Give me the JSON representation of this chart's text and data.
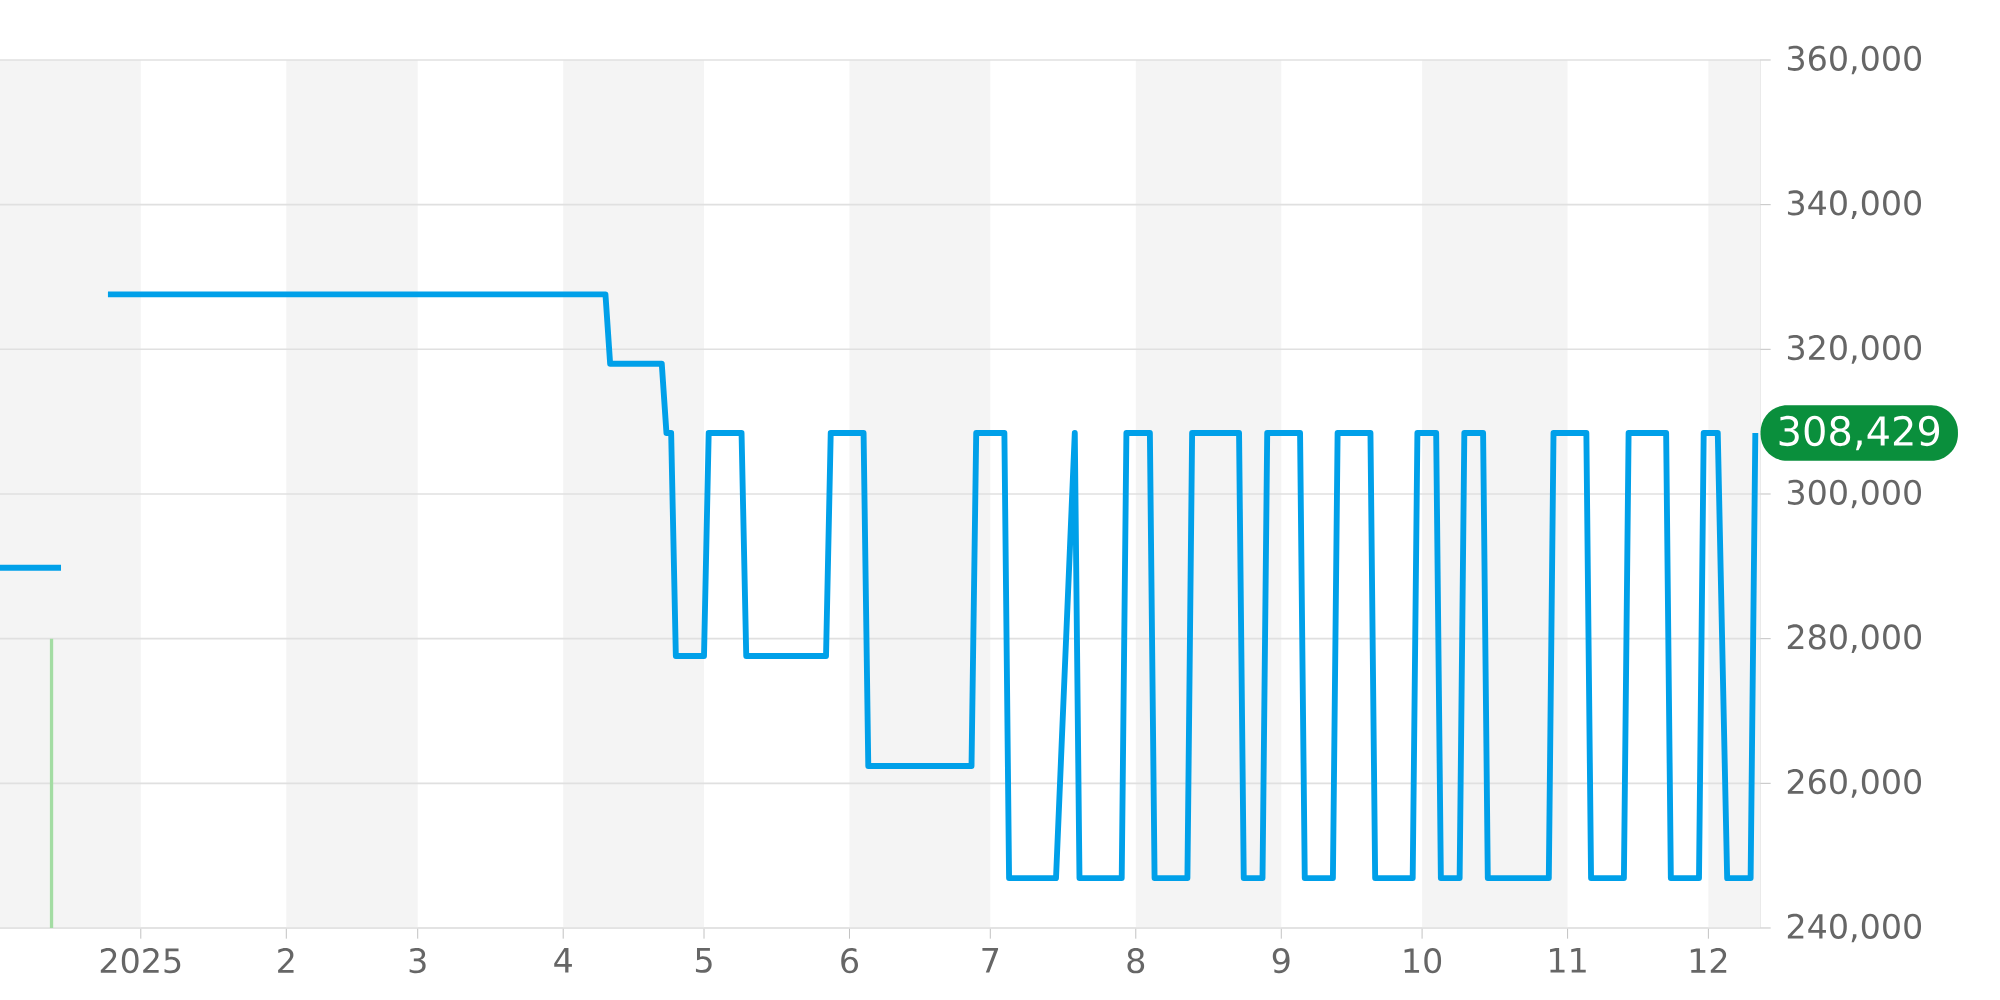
{
  "chart_data": {
    "type": "line",
    "xlim": [
      "2024-12-02",
      "2025-12-12"
    ],
    "ylim": [
      240000,
      360000
    ],
    "xticks": [
      {
        "value": "2025-01-01",
        "label": "2025"
      },
      {
        "value": "2025-02-01",
        "label": "2"
      },
      {
        "value": "2025-03-01",
        "label": "3"
      },
      {
        "value": "2025-04-01",
        "label": "4"
      },
      {
        "value": "2025-05-01",
        "label": "5"
      },
      {
        "value": "2025-06-01",
        "label": "6"
      },
      {
        "value": "2025-07-01",
        "label": "7"
      },
      {
        "value": "2025-08-01",
        "label": "8"
      },
      {
        "value": "2025-09-01",
        "label": "9"
      },
      {
        "value": "2025-10-01",
        "label": "10"
      },
      {
        "value": "2025-11-01",
        "label": "11"
      },
      {
        "value": "2025-12-01",
        "label": "12"
      }
    ],
    "yticks": [
      {
        "value": 240000,
        "label": "240,000"
      },
      {
        "value": 260000,
        "label": "260,000"
      },
      {
        "value": 280000,
        "label": "280,000"
      },
      {
        "value": 300000,
        "label": "300,000"
      },
      {
        "value": 320000,
        "label": "320,000"
      },
      {
        "value": 340000,
        "label": "340,000"
      },
      {
        "value": 360000,
        "label": "360,000"
      }
    ],
    "grid": "y",
    "bands": [
      {
        "axis": "x",
        "from": "2024-12-02",
        "to": "2025-01-01",
        "color": "#f4f4f4"
      },
      {
        "axis": "x",
        "from": "2025-02-01",
        "to": "2025-03-01",
        "color": "#f4f4f4"
      },
      {
        "axis": "x",
        "from": "2025-04-01",
        "to": "2025-05-01",
        "color": "#f4f4f4"
      },
      {
        "axis": "x",
        "from": "2025-06-01",
        "to": "2025-07-01",
        "color": "#f4f4f4"
      },
      {
        "axis": "x",
        "from": "2025-08-01",
        "to": "2025-09-01",
        "color": "#f4f4f4"
      },
      {
        "axis": "x",
        "from": "2025-10-01",
        "to": "2025-11-01",
        "color": "#f4f4f4"
      },
      {
        "axis": "x",
        "from": "2025-12-01",
        "to": "2025-12-12",
        "color": "#f4f4f4"
      }
    ],
    "annotations": [
      {
        "text": "308,429",
        "x": "2025-12-12",
        "y": 308429
      }
    ],
    "series": [
      {
        "type": "bar",
        "color": "#a3dca3",
        "x": [
          "2024-12-13"
        ],
        "values": [
          280000
        ]
      },
      {
        "color": "#00a0e9",
        "x": [
          "2024-12-02",
          "2024-12-15",
          "2024-12-20",
          "2024-12-25",
          "2025-04-10",
          "2025-04-11",
          "2025-04-22",
          "2025-04-23",
          "2025-04-24",
          "2025-04-25",
          "2025-05-01",
          "2025-05-02",
          "2025-05-09",
          "2025-05-10",
          "2025-05-27",
          "2025-05-28",
          "2025-06-04",
          "2025-06-05",
          "2025-06-27",
          "2025-06-28",
          "2025-07-04",
          "2025-07-05",
          "2025-07-15",
          "2025-07-19",
          "2025-07-20",
          "2025-07-29",
          "2025-07-30",
          "2025-08-04",
          "2025-08-05",
          "2025-08-12",
          "2025-08-13",
          "2025-08-23",
          "2025-08-24",
          "2025-08-28",
          "2025-08-29",
          "2025-09-05",
          "2025-09-06",
          "2025-09-12",
          "2025-09-13",
          "2025-09-20",
          "2025-09-21",
          "2025-09-29",
          "2025-09-30",
          "2025-10-04",
          "2025-10-05",
          "2025-10-09",
          "2025-10-10",
          "2025-10-14",
          "2025-10-15",
          "2025-10-28",
          "2025-10-29",
          "2025-11-05",
          "2025-11-06",
          "2025-11-13",
          "2025-11-14",
          "2025-11-22",
          "2025-11-23",
          "2025-11-29",
          "2025-11-30",
          "2025-12-03",
          "2025-12-05",
          "2025-12-10",
          "2025-12-11"
        ],
        "values": [
          289800,
          289800,
          null,
          327600,
          327600,
          318000,
          318000,
          308429,
          308429,
          277600,
          277600,
          308429,
          308429,
          277600,
          277600,
          308429,
          308429,
          262400,
          262400,
          308429,
          308429,
          246900,
          246900,
          308429,
          246900,
          246900,
          308429,
          308429,
          246900,
          246900,
          308429,
          308429,
          246900,
          246900,
          308429,
          308429,
          246900,
          246900,
          308429,
          308429,
          246900,
          246900,
          308429,
          308429,
          246900,
          246900,
          308429,
          308429,
          246900,
          246900,
          308429,
          308429,
          246900,
          246900,
          308429,
          308429,
          246900,
          246900,
          308429,
          308429,
          246900,
          246900,
          308429
        ]
      }
    ]
  }
}
